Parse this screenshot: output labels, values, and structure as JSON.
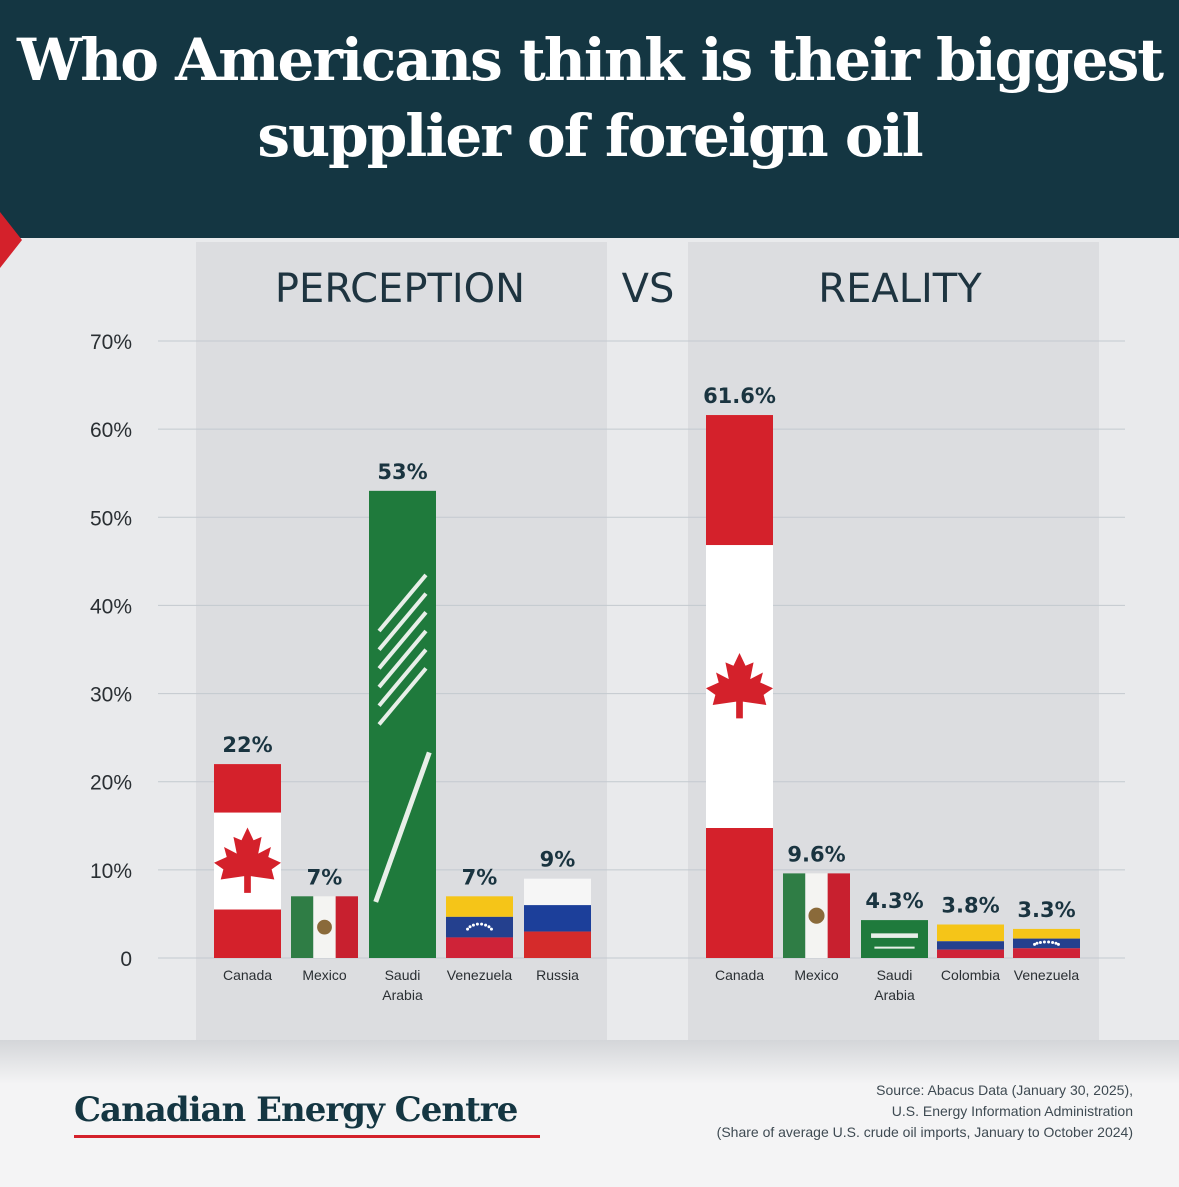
{
  "title": "Who Americans think is their biggest supplier of foreign oil",
  "vs_label": "VS",
  "footer": {
    "brand": "Canadian Energy Centre",
    "source_lines": [
      "Source: Abacus Data (January 30, 2025),",
      "U.S. Energy Information Administration",
      "(Share of average U.S. crude oil imports, January to October 2024)"
    ]
  },
  "colors": {
    "header_bg": "#143642",
    "accent_red": "#d4212b",
    "value_label": "#1a3440",
    "panel_bg": "#dcdde0"
  },
  "chart_data": [
    {
      "type": "bar",
      "title": "PERCEPTION",
      "ylim": [
        0,
        70
      ],
      "yticks": [
        "0",
        "10%",
        "20%",
        "30%",
        "40%",
        "50%",
        "60%",
        "70%"
      ],
      "grid": true,
      "categories": [
        "Canada",
        "Mexico",
        "Saudi Arabia",
        "Venezuela",
        "Russia"
      ],
      "category_lines": [
        [
          "Canada"
        ],
        [
          "Mexico"
        ],
        [
          "Saudi",
          "Arabia"
        ],
        [
          "Venezuela"
        ],
        [
          "Russia"
        ]
      ],
      "values": [
        22,
        7,
        53,
        7,
        9
      ],
      "labels": [
        "22%",
        "7%",
        "53%",
        "7%",
        "9%"
      ],
      "flags": [
        "canada-flag",
        "mexico-flag",
        "saudi-arabia-flag",
        "venezuela-flag",
        "russia-flag"
      ]
    },
    {
      "type": "bar",
      "title": "REALITY",
      "ylim": [
        0,
        70
      ],
      "categories": [
        "Canada",
        "Mexico",
        "Saudi Arabia",
        "Colombia",
        "Venezuela"
      ],
      "category_lines": [
        [
          "Canada"
        ],
        [
          "Mexico"
        ],
        [
          "Saudi",
          "Arabia"
        ],
        [
          "Colombia"
        ],
        [
          "Venezuela"
        ]
      ],
      "values": [
        61.6,
        9.6,
        4.3,
        3.8,
        3.3
      ],
      "labels": [
        "61.6%",
        "9.6%",
        "4.3%",
        "3.8%",
        "3.3%"
      ],
      "flags": [
        "canada-flag",
        "mexico-flag",
        "saudi-arabia-flag",
        "colombia-flag",
        "venezuela-flag"
      ]
    }
  ]
}
